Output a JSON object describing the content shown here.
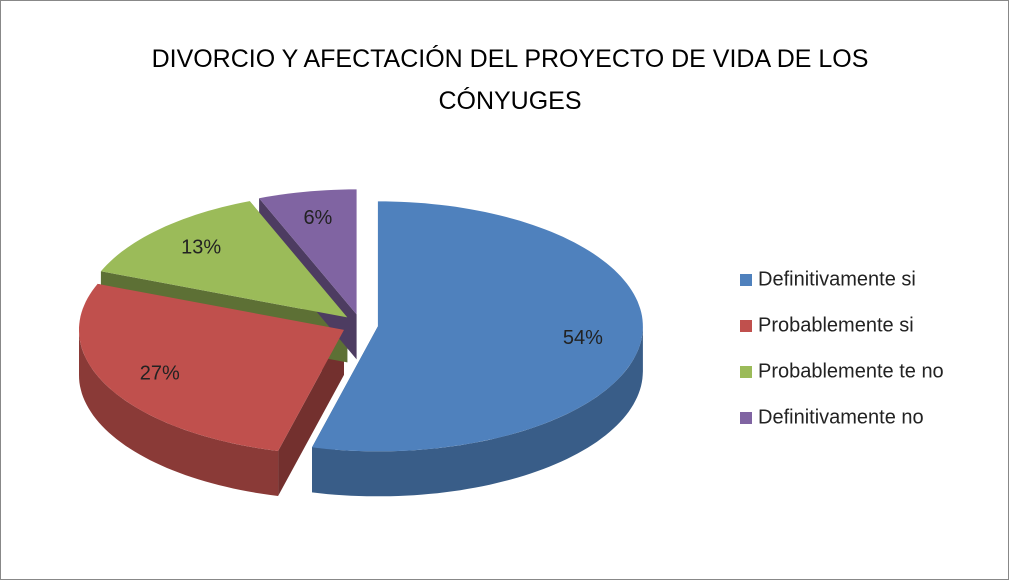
{
  "chart_data": {
    "type": "pie",
    "title": "DIVORCIO Y AFECTACIÓN DEL PROYECTO DE VIDA DE LOS CÓNYUGES",
    "categories": [
      "Definitivamente si",
      "Probablemente si",
      "Probablemente te no",
      "Definitivamente no"
    ],
    "values": [
      54,
      27,
      13,
      6
    ],
    "value_labels": [
      "54%",
      "27%",
      "13%",
      "6%"
    ],
    "colors": [
      "#4f81bd",
      "#c0504d",
      "#9bbb59",
      "#8064a2"
    ],
    "legend": "right"
  }
}
